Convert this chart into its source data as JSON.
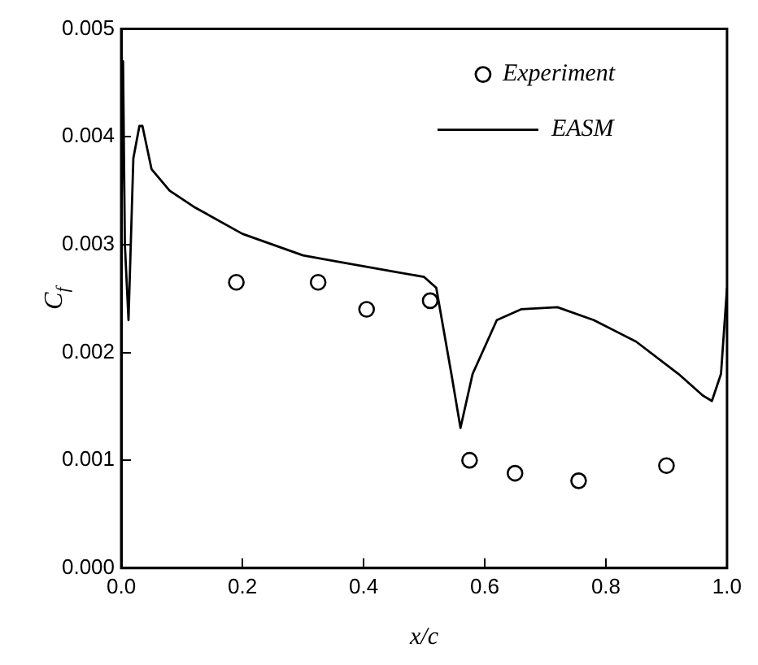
{
  "chart_data": {
    "type": "scatter",
    "xlabel": "x/c",
    "ylabel": "C$_{f}$",
    "xlim": [
      0,
      1
    ],
    "ylim": [
      0,
      0.005
    ],
    "xticks": [
      {
        "value": 0,
        "label": "0.0"
      },
      0.2,
      0.4,
      0.6,
      0.8,
      {
        "value": 1,
        "label": "1.0"
      }
    ],
    "yticks": [
      {
        "value": 0,
        "label": "0.000"
      },
      0.001,
      0.002,
      0.003,
      0.004,
      0.005
    ],
    "grid": false,
    "legend": "top right",
    "series": [
      {
        "name": "Experiment",
        "type": "scatter",
        "marker": "circle",
        "color": "#000000",
        "x": [
          0.19,
          0.325,
          0.405,
          0.51,
          0.575,
          0.65,
          0.755,
          0.9
        ],
        "values": [
          0.00265,
          0.00265,
          0.0024,
          0.00248,
          0.001,
          0.00088,
          0.00081,
          0.00095
        ]
      },
      {
        "name": "EASM",
        "type": "line",
        "marker": "none",
        "line_style": "solid",
        "color": "#000000",
        "x": [
          0,
          0.003,
          0.006,
          0.012,
          0.02,
          0.03,
          0.035,
          0.05,
          0.08,
          0.12,
          0.2,
          0.3,
          0.35,
          0.45,
          0.5,
          0.52,
          0.545,
          0.56,
          0.58,
          0.62,
          0.66,
          0.72,
          0.78,
          0.85,
          0.92,
          0.96,
          0.975,
          0.99,
          1.0
        ],
        "values": [
          0.003,
          0.0047,
          0.003,
          0.0023,
          0.0038,
          0.0041,
          0.0041,
          0.0037,
          0.0035,
          0.00335,
          0.0031,
          0.0029,
          0.00285,
          0.00275,
          0.0027,
          0.0026,
          0.0018,
          0.0013,
          0.0018,
          0.0023,
          0.0024,
          0.00242,
          0.0023,
          0.0021,
          0.0018,
          0.0016,
          0.00155,
          0.0018,
          0.0026
        ]
      }
    ]
  }
}
